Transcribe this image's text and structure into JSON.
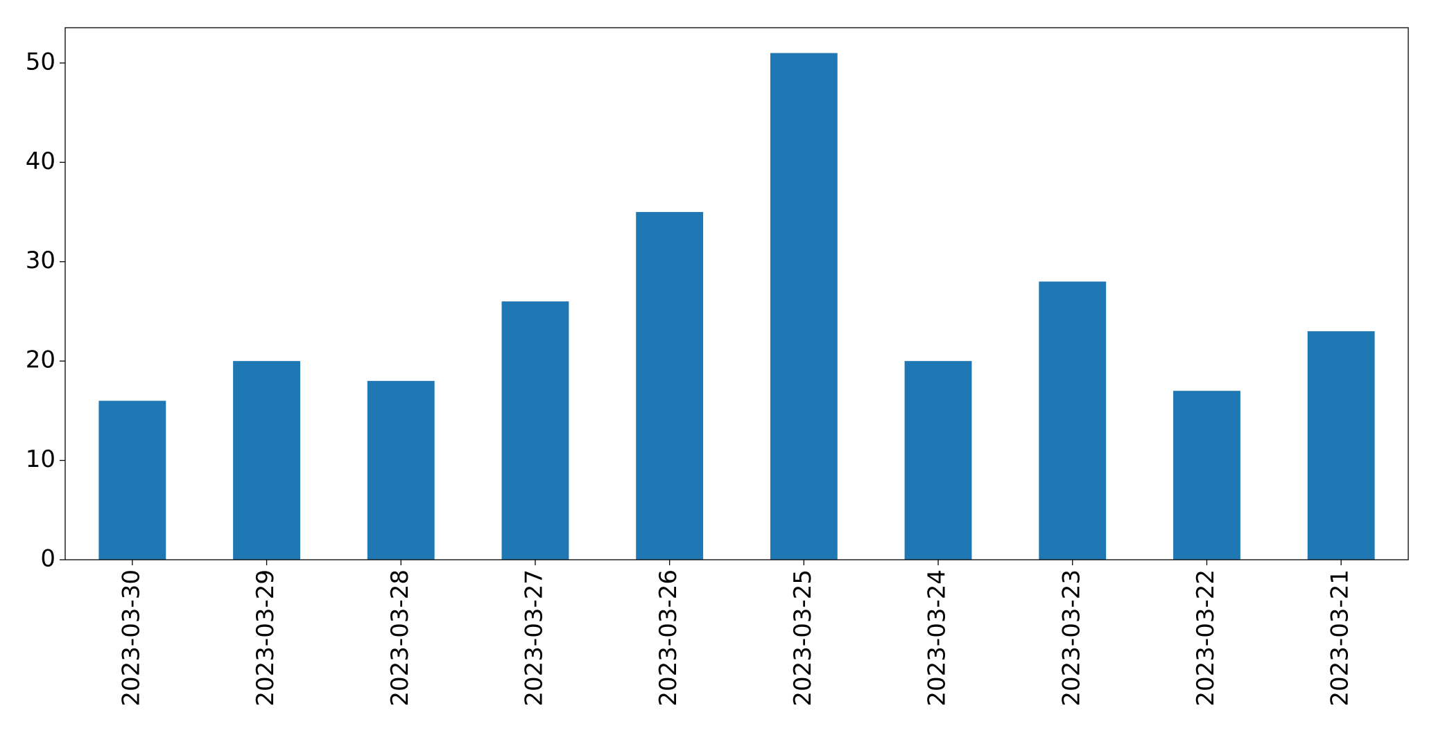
{
  "chart_data": {
    "type": "bar",
    "categories": [
      "2023-03-30",
      "2023-03-29",
      "2023-03-28",
      "2023-03-27",
      "2023-03-26",
      "2023-03-25",
      "2023-03-24",
      "2023-03-23",
      "2023-03-22",
      "2023-03-21"
    ],
    "values": [
      16,
      20,
      18,
      26,
      35,
      51,
      20,
      28,
      17,
      23
    ],
    "color": "#1f77b4",
    "ylim": [
      0,
      53.55
    ],
    "yticks": [
      0,
      10,
      20,
      30,
      40,
      50
    ],
    "grid": false
  }
}
